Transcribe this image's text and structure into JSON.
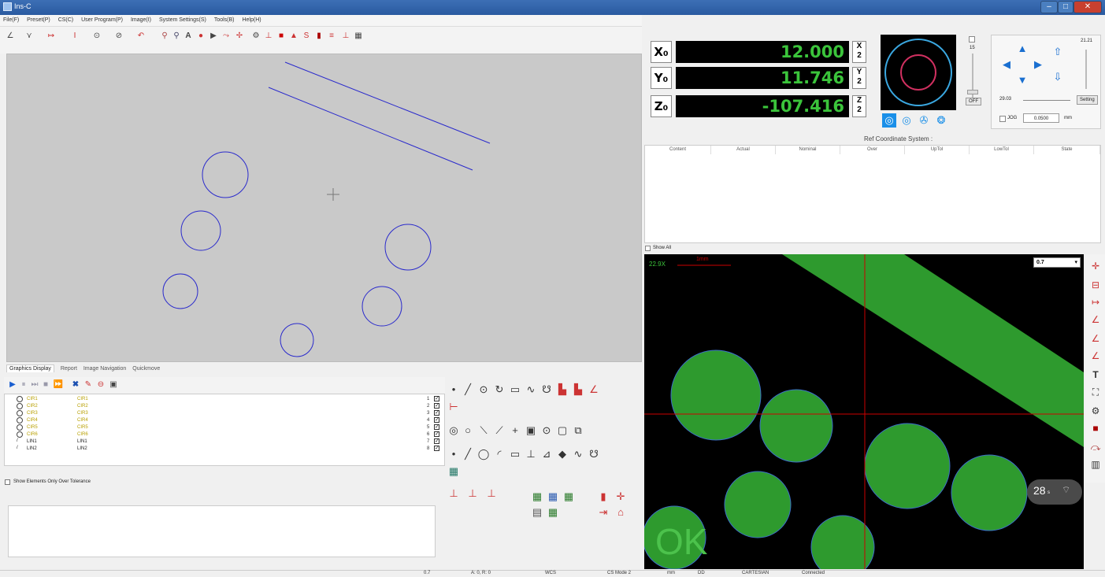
{
  "window": {
    "title": "Ins-C"
  },
  "menu": [
    "File(F)",
    "Preset(P)",
    "CS(C)",
    "User Program(P)",
    "Image(I)",
    "System Settings(S)",
    "Tools(B)",
    "Help(H)"
  ],
  "tabs": [
    "Graphics Display",
    "Report",
    "Image Navigation",
    "Quickmove"
  ],
  "elements": [
    {
      "name": "CIR1",
      "ref": "CIR1",
      "num": "1"
    },
    {
      "name": "CIR2",
      "ref": "CIR2",
      "num": "2"
    },
    {
      "name": "CIR3",
      "ref": "CIR3",
      "num": "3"
    },
    {
      "name": "CIR4",
      "ref": "CIR4",
      "num": "4"
    },
    {
      "name": "CIR5",
      "ref": "CIR5",
      "num": "5"
    },
    {
      "name": "CIR6",
      "ref": "CIR6",
      "num": "6"
    },
    {
      "name": "LIN1",
      "ref": "LIN1",
      "num": "7"
    },
    {
      "name": "LIN2",
      "ref": "LIN2",
      "num": "8"
    }
  ],
  "overtol_label": "Show Elements Only Over Tolerance",
  "dro": {
    "x": {
      "label": "X₀",
      "value": "12.000",
      "unit": "X/2"
    },
    "y": {
      "label": "Y₀",
      "value": "11.746",
      "unit": "Y/2"
    },
    "z": {
      "label": "Z₀",
      "value": "-107.416",
      "unit": "Z/2"
    }
  },
  "controls": {
    "speed_small": "15",
    "off_btn": "OFF",
    "speed_value": "29.03",
    "setting_btn": "Setting",
    "jog_label": "JOG",
    "jog_value": "0.0500",
    "jog_unit": "mm",
    "light_value": "21.21"
  },
  "ref_cs_label": "Ref Coordinate System :",
  "report_columns": [
    "Content",
    "Actual",
    "Nominal",
    "Over",
    "UpTol",
    "LowTol",
    "State"
  ],
  "show_all_label": "Show All",
  "camera": {
    "zoom_label": "22.9X",
    "scale_label": "1mm",
    "zoom_select": "0.7",
    "result": "OK",
    "fps": "28",
    "fps_unit": "s"
  },
  "status": [
    "0.7",
    "A: 0, R: 0",
    "WCS",
    "CS Mode 2",
    "mm",
    "DD",
    "CARTESIAN",
    "Connected"
  ],
  "colors": {
    "dro_green": "#3bc43b",
    "ok_green": "#4cc24c",
    "crosshair": "#cc0000",
    "feature_blue": "#2a2acc",
    "pad_green": "#2e9a2e"
  }
}
